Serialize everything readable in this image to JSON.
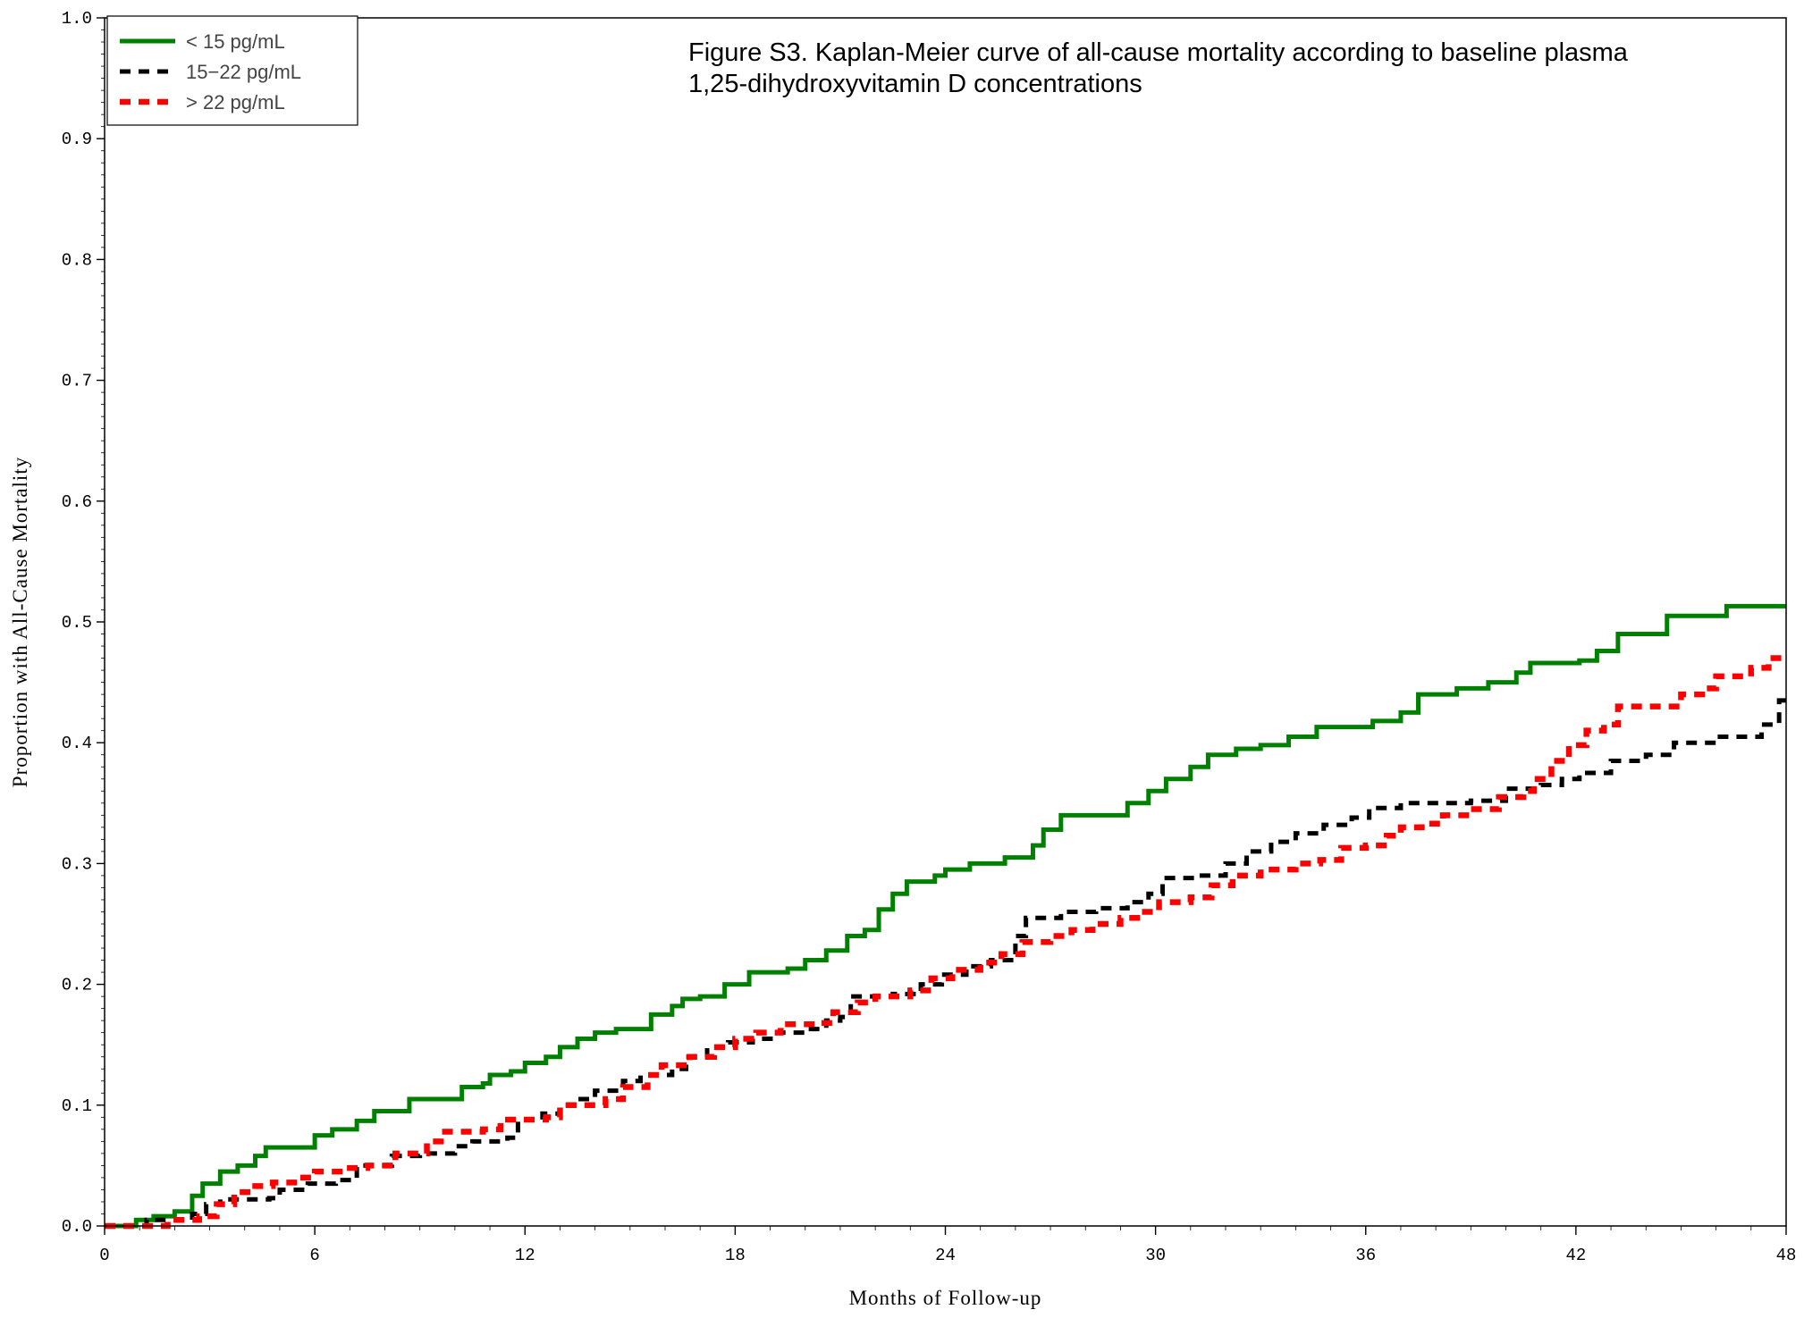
{
  "chart_data": {
    "type": "line",
    "title_lines": [
      "Figure S3. Kaplan-Meier curve of all-cause mortality according to baseline plasma",
      "1,25-dihydroxyvitamin D concentrations"
    ],
    "xlabel": "Months of Follow-up",
    "ylabel": "Proportion with All-Cause Mortality",
    "xlim": [
      0,
      48
    ],
    "ylim": [
      0,
      1
    ],
    "x_ticks": [
      "0",
      "6",
      "12",
      "18",
      "24",
      "30",
      "36",
      "42",
      "48"
    ],
    "y_ticks": [
      "0.0",
      "0.1",
      "0.2",
      "0.3",
      "0.4",
      "0.5",
      "0.6",
      "0.7",
      "0.8",
      "0.9",
      "1.0"
    ],
    "grid": false,
    "legend_position": "top-left",
    "series": [
      {
        "name": "< 15 pg/mL",
        "color": "#008000",
        "style": "solid",
        "points": [
          [
            0,
            0
          ],
          [
            0.5,
            0
          ],
          [
            0.9,
            0.005
          ],
          [
            1.4,
            0.008
          ],
          [
            2,
            0.012
          ],
          [
            2.5,
            0.025
          ],
          [
            2.8,
            0.035
          ],
          [
            3.3,
            0.045
          ],
          [
            3.8,
            0.05
          ],
          [
            4.3,
            0.058
          ],
          [
            4.6,
            0.065
          ],
          [
            5.7,
            0.065
          ],
          [
            6,
            0.075
          ],
          [
            6.5,
            0.08
          ],
          [
            7.2,
            0.087
          ],
          [
            7.7,
            0.095
          ],
          [
            8.5,
            0.095
          ],
          [
            8.7,
            0.105
          ],
          [
            9.8,
            0.105
          ],
          [
            10.2,
            0.115
          ],
          [
            10.8,
            0.118
          ],
          [
            11,
            0.125
          ],
          [
            11.6,
            0.128
          ],
          [
            12,
            0.135
          ],
          [
            12.6,
            0.14
          ],
          [
            13,
            0.148
          ],
          [
            13.5,
            0.155
          ],
          [
            14,
            0.16
          ],
          [
            14.6,
            0.163
          ],
          [
            15.3,
            0.163
          ],
          [
            15.6,
            0.175
          ],
          [
            16.2,
            0.182
          ],
          [
            16.5,
            0.188
          ],
          [
            17,
            0.19
          ],
          [
            17.7,
            0.2
          ],
          [
            18.4,
            0.21
          ],
          [
            19.5,
            0.213
          ],
          [
            20,
            0.22
          ],
          [
            20.6,
            0.228
          ],
          [
            21.2,
            0.24
          ],
          [
            21.7,
            0.245
          ],
          [
            22.1,
            0.262
          ],
          [
            22.5,
            0.275
          ],
          [
            22.9,
            0.285
          ],
          [
            23.7,
            0.29
          ],
          [
            24,
            0.295
          ],
          [
            24.7,
            0.3
          ],
          [
            25.7,
            0.305
          ],
          [
            26.5,
            0.315
          ],
          [
            26.8,
            0.328
          ],
          [
            27.3,
            0.34
          ],
          [
            28.5,
            0.34
          ],
          [
            29.2,
            0.35
          ],
          [
            29.8,
            0.36
          ],
          [
            30.3,
            0.37
          ],
          [
            31,
            0.38
          ],
          [
            31.5,
            0.39
          ],
          [
            32.3,
            0.395
          ],
          [
            33,
            0.398
          ],
          [
            33.8,
            0.405
          ],
          [
            34.6,
            0.413
          ],
          [
            35.9,
            0.413
          ],
          [
            36.2,
            0.418
          ],
          [
            37,
            0.425
          ],
          [
            37.5,
            0.44
          ],
          [
            38.6,
            0.445
          ],
          [
            39.5,
            0.45
          ],
          [
            40.3,
            0.458
          ],
          [
            40.7,
            0.466
          ],
          [
            42.1,
            0.468
          ],
          [
            42.6,
            0.476
          ],
          [
            43.2,
            0.49
          ],
          [
            44.4,
            0.49
          ],
          [
            44.6,
            0.505
          ],
          [
            46.2,
            0.505
          ],
          [
            46.3,
            0.513
          ],
          [
            48,
            0.513
          ]
        ]
      },
      {
        "name": "15−22 pg/mL",
        "color": "#000000",
        "style": "dashed",
        "points": [
          [
            0,
            0
          ],
          [
            0.8,
            0
          ],
          [
            1.2,
            0.005
          ],
          [
            2.5,
            0.01
          ],
          [
            2.9,
            0.018
          ],
          [
            3.3,
            0.022
          ],
          [
            4.7,
            0.023
          ],
          [
            5,
            0.03
          ],
          [
            5.8,
            0.035
          ],
          [
            6.6,
            0.038
          ],
          [
            7.2,
            0.05
          ],
          [
            7.8,
            0.05
          ],
          [
            8.2,
            0.058
          ],
          [
            9,
            0.06
          ],
          [
            10,
            0.066
          ],
          [
            10.5,
            0.07
          ],
          [
            11.5,
            0.073
          ],
          [
            11.8,
            0.088
          ],
          [
            12.5,
            0.093
          ],
          [
            13,
            0.1
          ],
          [
            13.5,
            0.105
          ],
          [
            14,
            0.112
          ],
          [
            14.8,
            0.12
          ],
          [
            15.3,
            0.125
          ],
          [
            16.2,
            0.13
          ],
          [
            16.6,
            0.14
          ],
          [
            17.2,
            0.148
          ],
          [
            17.8,
            0.152
          ],
          [
            18.5,
            0.155
          ],
          [
            19.2,
            0.16
          ],
          [
            20,
            0.163
          ],
          [
            20.6,
            0.17
          ],
          [
            21,
            0.173
          ],
          [
            21.3,
            0.19
          ],
          [
            22.5,
            0.192
          ],
          [
            23.3,
            0.2
          ],
          [
            23.9,
            0.208
          ],
          [
            24.6,
            0.215
          ],
          [
            25.3,
            0.22
          ],
          [
            26,
            0.24
          ],
          [
            26.3,
            0.255
          ],
          [
            27.3,
            0.26
          ],
          [
            28.3,
            0.263
          ],
          [
            29.2,
            0.268
          ],
          [
            29.8,
            0.275
          ],
          [
            30.2,
            0.288
          ],
          [
            31.2,
            0.29
          ],
          [
            32,
            0.3
          ],
          [
            32.6,
            0.31
          ],
          [
            33.3,
            0.318
          ],
          [
            34,
            0.325
          ],
          [
            34.8,
            0.332
          ],
          [
            35.6,
            0.338
          ],
          [
            36.1,
            0.346
          ],
          [
            37,
            0.35
          ],
          [
            38.2,
            0.35
          ],
          [
            39,
            0.352
          ],
          [
            40,
            0.362
          ],
          [
            41,
            0.365
          ],
          [
            41.6,
            0.37
          ],
          [
            42.1,
            0.375
          ],
          [
            43,
            0.385
          ],
          [
            44,
            0.39
          ],
          [
            44.8,
            0.4
          ],
          [
            46,
            0.405
          ],
          [
            47.3,
            0.415
          ],
          [
            47.8,
            0.435
          ],
          [
            48,
            0.44
          ]
        ]
      },
      {
        "name": "> 22 pg/mL",
        "color": "#ff0000",
        "style": "dashed",
        "points": [
          [
            0,
            0
          ],
          [
            1.5,
            0
          ],
          [
            1.8,
            0.005
          ],
          [
            2.7,
            0.008
          ],
          [
            3.2,
            0.018
          ],
          [
            3.7,
            0.028
          ],
          [
            4.3,
            0.033
          ],
          [
            4.8,
            0.036
          ],
          [
            5.5,
            0.04
          ],
          [
            6,
            0.045
          ],
          [
            6.8,
            0.048
          ],
          [
            7.5,
            0.05
          ],
          [
            8.3,
            0.06
          ],
          [
            9.2,
            0.07
          ],
          [
            9.6,
            0.078
          ],
          [
            10.8,
            0.08
          ],
          [
            11.3,
            0.088
          ],
          [
            12.6,
            0.09
          ],
          [
            13,
            0.1
          ],
          [
            14.3,
            0.105
          ],
          [
            14.8,
            0.115
          ],
          [
            15.5,
            0.125
          ],
          [
            15.9,
            0.133
          ],
          [
            16.7,
            0.14
          ],
          [
            17.4,
            0.148
          ],
          [
            18,
            0.155
          ],
          [
            18.6,
            0.16
          ],
          [
            19.3,
            0.167
          ],
          [
            20.3,
            0.168
          ],
          [
            20.8,
            0.177
          ],
          [
            21.5,
            0.185
          ],
          [
            22,
            0.19
          ],
          [
            23,
            0.195
          ],
          [
            23.6,
            0.205
          ],
          [
            24.2,
            0.212
          ],
          [
            25,
            0.218
          ],
          [
            25.6,
            0.225
          ],
          [
            26.2,
            0.235
          ],
          [
            27,
            0.24
          ],
          [
            27.6,
            0.245
          ],
          [
            28.2,
            0.25
          ],
          [
            29,
            0.255
          ],
          [
            29.6,
            0.26
          ],
          [
            30.1,
            0.268
          ],
          [
            31,
            0.272
          ],
          [
            31.6,
            0.282
          ],
          [
            32.2,
            0.29
          ],
          [
            33,
            0.295
          ],
          [
            34,
            0.3
          ],
          [
            34.7,
            0.303
          ],
          [
            35.3,
            0.313
          ],
          [
            36,
            0.315
          ],
          [
            36.6,
            0.323
          ],
          [
            37,
            0.33
          ],
          [
            37.6,
            0.333
          ],
          [
            38.2,
            0.34
          ],
          [
            39,
            0.345
          ],
          [
            39.8,
            0.355
          ],
          [
            40.5,
            0.36
          ],
          [
            40.8,
            0.37
          ],
          [
            41.3,
            0.385
          ],
          [
            41.8,
            0.398
          ],
          [
            42.3,
            0.41
          ],
          [
            42.8,
            0.415
          ],
          [
            43.2,
            0.43
          ],
          [
            44.6,
            0.43
          ],
          [
            45,
            0.44
          ],
          [
            45.6,
            0.445
          ],
          [
            46,
            0.455
          ],
          [
            47,
            0.462
          ],
          [
            47.5,
            0.47
          ],
          [
            48,
            0.47
          ]
        ]
      }
    ]
  }
}
